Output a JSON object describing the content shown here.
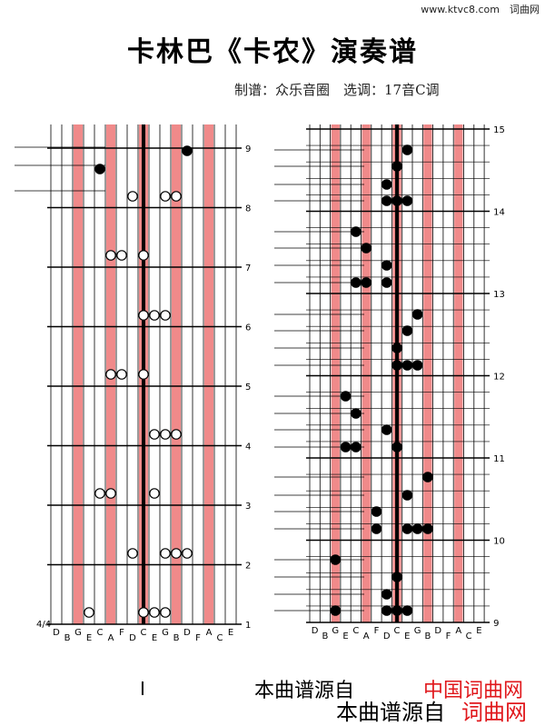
{
  "site": {
    "url": "www.ktvc8.com",
    "name": "词曲网"
  },
  "title": "卡林巴《卡农》演奏谱",
  "credit": "制谱：众乐音圈　选调：17音C调",
  "time_signature": "4/4",
  "key_letters": [
    "D",
    "B",
    "G",
    "E",
    "C",
    "A",
    "F",
    "D",
    "C",
    "E",
    "G",
    "B",
    "D",
    "F",
    "A",
    "C",
    "E"
  ],
  "left_panel": {
    "measures": [
      "1",
      "2",
      "3",
      "4",
      "5",
      "6",
      "7",
      "8",
      "9"
    ]
  },
  "right_panel": {
    "measures": [
      "9",
      "10",
      "11",
      "12",
      "13",
      "14",
      "15"
    ]
  },
  "footer": {
    "marker": "I",
    "source_text": "本曲谱源自",
    "site_name": "中国词曲网",
    "bottom_source": "本曲谱源自",
    "bottom_site": "词曲网"
  },
  "colors": {
    "red_key": "#f08a8a",
    "footer_red": "#e0171b"
  }
}
